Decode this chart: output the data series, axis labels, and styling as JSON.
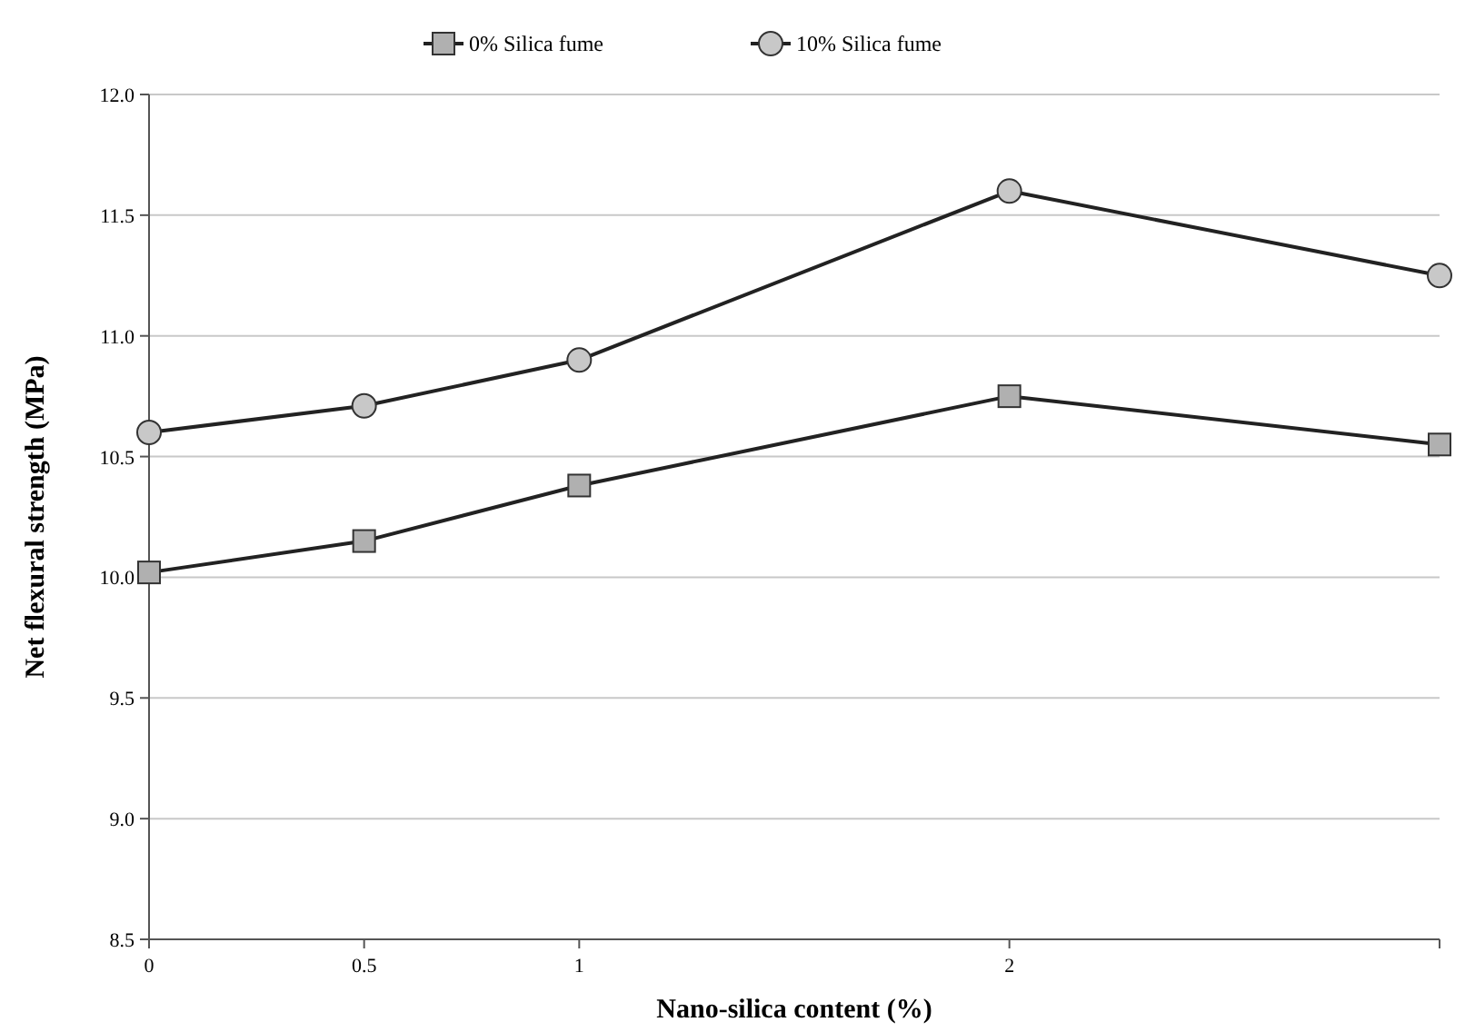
{
  "chart_data": {
    "type": "line",
    "xlabel": "Nano-silica content (%)",
    "ylabel": "Net flexural strength (MPa)",
    "x": [
      0,
      0.5,
      1,
      2,
      3
    ],
    "xlim": [
      0,
      3
    ],
    "xticks": [
      0,
      0.5,
      1,
      2,
      {
        "value": 3,
        "label": null
      }
    ],
    "ylim": [
      8.5,
      12
    ],
    "yticks": [
      {
        "value": 8.5,
        "label": "8.5"
      },
      {
        "value": 9,
        "label": "9.0"
      },
      {
        "value": 9.5,
        "label": "9.5"
      },
      {
        "value": 10,
        "label": "10.0"
      },
      {
        "value": 10.5,
        "label": "10.5"
      },
      {
        "value": 11,
        "label": "11.0"
      },
      {
        "value": 11.5,
        "label": "11.5"
      },
      {
        "value": 12,
        "label": "12.0"
      }
    ],
    "grid": "y",
    "legend": "top",
    "series": [
      {
        "name": "0% Silica fume",
        "color": "#b0b0b0",
        "marker": "square",
        "values": [
          10.02,
          10.15,
          10.38,
          10.75,
          10.55
        ]
      },
      {
        "name": "10% Silica fume",
        "color": "#c8c8c8",
        "marker": "circle",
        "values": [
          10.6,
          10.71,
          10.9,
          11.6,
          11.25
        ]
      }
    ]
  }
}
